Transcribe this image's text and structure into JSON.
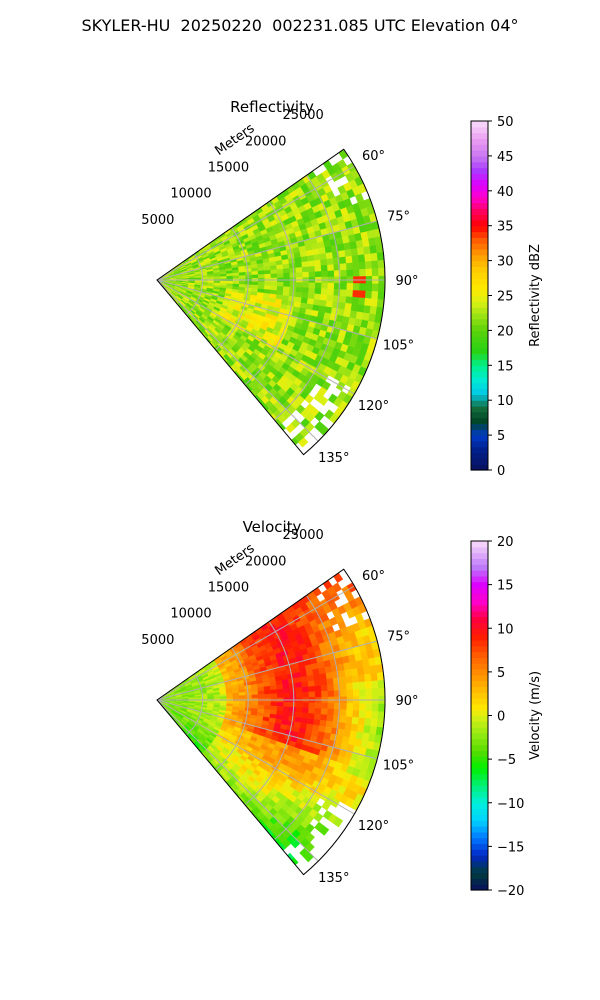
{
  "figure_title": "SKYLER-HU  20250220  002231.085 UTC Elevation 04°",
  "chart_data": [
    {
      "type": "heatmap",
      "title": "Reflectivity",
      "range_label": "Meters",
      "range_ticks": [
        "5000",
        "10000",
        "15000",
        "20000",
        "25000"
      ],
      "range_values": [
        5000,
        10000,
        15000,
        20000,
        25000
      ],
      "azimuth_ticks": [
        "60°",
        "75°",
        "90°",
        "105°",
        "120°",
        "135°"
      ],
      "azimuth_values": [
        60,
        75,
        90,
        105,
        120,
        135
      ],
      "azimuth_range": [
        55,
        140
      ],
      "max_range": 25000,
      "grid": true,
      "colorbar": {
        "label": "Reflectivity dBZ",
        "range": [
          0,
          50
        ],
        "ticks": [
          "0",
          "5",
          "10",
          "15",
          "20",
          "25",
          "30",
          "35",
          "40",
          "45",
          "50"
        ],
        "tick_values": [
          0,
          5,
          10,
          15,
          20,
          25,
          30,
          35,
          40,
          45,
          50
        ]
      },
      "typical_value": 22
    },
    {
      "type": "heatmap",
      "title": "Velocity",
      "range_label": "Meters",
      "range_ticks": [
        "5000",
        "10000",
        "15000",
        "20000",
        "25000"
      ],
      "range_values": [
        5000,
        10000,
        15000,
        20000,
        25000
      ],
      "azimuth_ticks": [
        "60°",
        "75°",
        "90°",
        "105°",
        "120°",
        "135°"
      ],
      "azimuth_values": [
        60,
        75,
        90,
        105,
        120,
        135
      ],
      "azimuth_range": [
        55,
        140
      ],
      "max_range": 25000,
      "grid": true,
      "colorbar": {
        "label": "Velocity (m/s)",
        "range": [
          -20,
          20
        ],
        "ticks": [
          "−20",
          "−15",
          "−10",
          "−5",
          "0",
          "5",
          "10",
          "15",
          "20"
        ],
        "tick_values": [
          -20,
          -15,
          -10,
          -5,
          0,
          5,
          10,
          15,
          20
        ]
      }
    }
  ]
}
